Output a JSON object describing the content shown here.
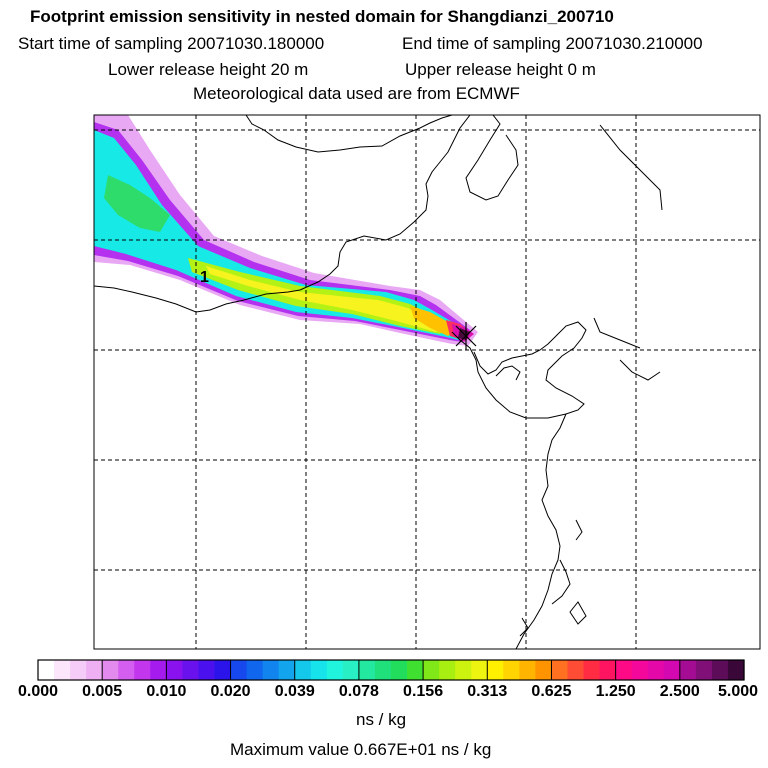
{
  "header": {
    "title": "Footprint emission sensitivity in nested domain for Shangdianzi_200710",
    "start_label": "Start time of sampling 20071030.180000",
    "end_label": "End time of sampling 20071030.210000",
    "lower_label": "Lower release height   20 m",
    "upper_label": "Upper release height    0 m",
    "met_label": "Meteorological data used are from ECMWF"
  },
  "map": {
    "marker_label": "1",
    "colors": {
      "outer": "#e9a8f4",
      "purple": "#b431f0",
      "cyan": "#17e9e6",
      "light_cyan": "#37f4e4",
      "green": "#2edc6c",
      "lime": "#b3f214",
      "yellow": "#f6f31e",
      "orange": "#ffc100",
      "red": "#ff2f5e",
      "magenta": "#d90fb0",
      "dark": "#4a0a3c"
    }
  },
  "colorbar": {
    "ticks": [
      "0.000",
      "0.005",
      "0.010",
      "0.020",
      "0.039",
      "0.078",
      "0.156",
      "0.313",
      "0.625",
      "1.250",
      "2.500",
      "5.000"
    ],
    "colors": [
      "#ffffff",
      "#fbe6fb",
      "#f5ccf7",
      "#eeb0f3",
      "#e38aef",
      "#d45eef",
      "#c236ee",
      "#a51aed",
      "#8a12ee",
      "#6a12ee",
      "#4a10ee",
      "#2b14ea",
      "#1648ee",
      "#1166ee",
      "#1184ee",
      "#13a4ee",
      "#14c8ec",
      "#16e4ea",
      "#20f4dc",
      "#28f0c4",
      "#22e8a0",
      "#20e07c",
      "#22dc5c",
      "#40e030",
      "#80e818",
      "#a8ee10",
      "#ccf210",
      "#ecf410",
      "#fff000",
      "#ffd400",
      "#ffb400",
      "#ff9400",
      "#ff7020",
      "#ff4c34",
      "#ff2c44",
      "#ff1462",
      "#ff0a86",
      "#f4089c",
      "#e408a8",
      "#d408b0",
      "#a40c94",
      "#801078",
      "#5c0c58",
      "#3a0838"
    ],
    "unit": "ns / kg",
    "max_label": "Maximum value  0.667E+01 ns / kg"
  }
}
